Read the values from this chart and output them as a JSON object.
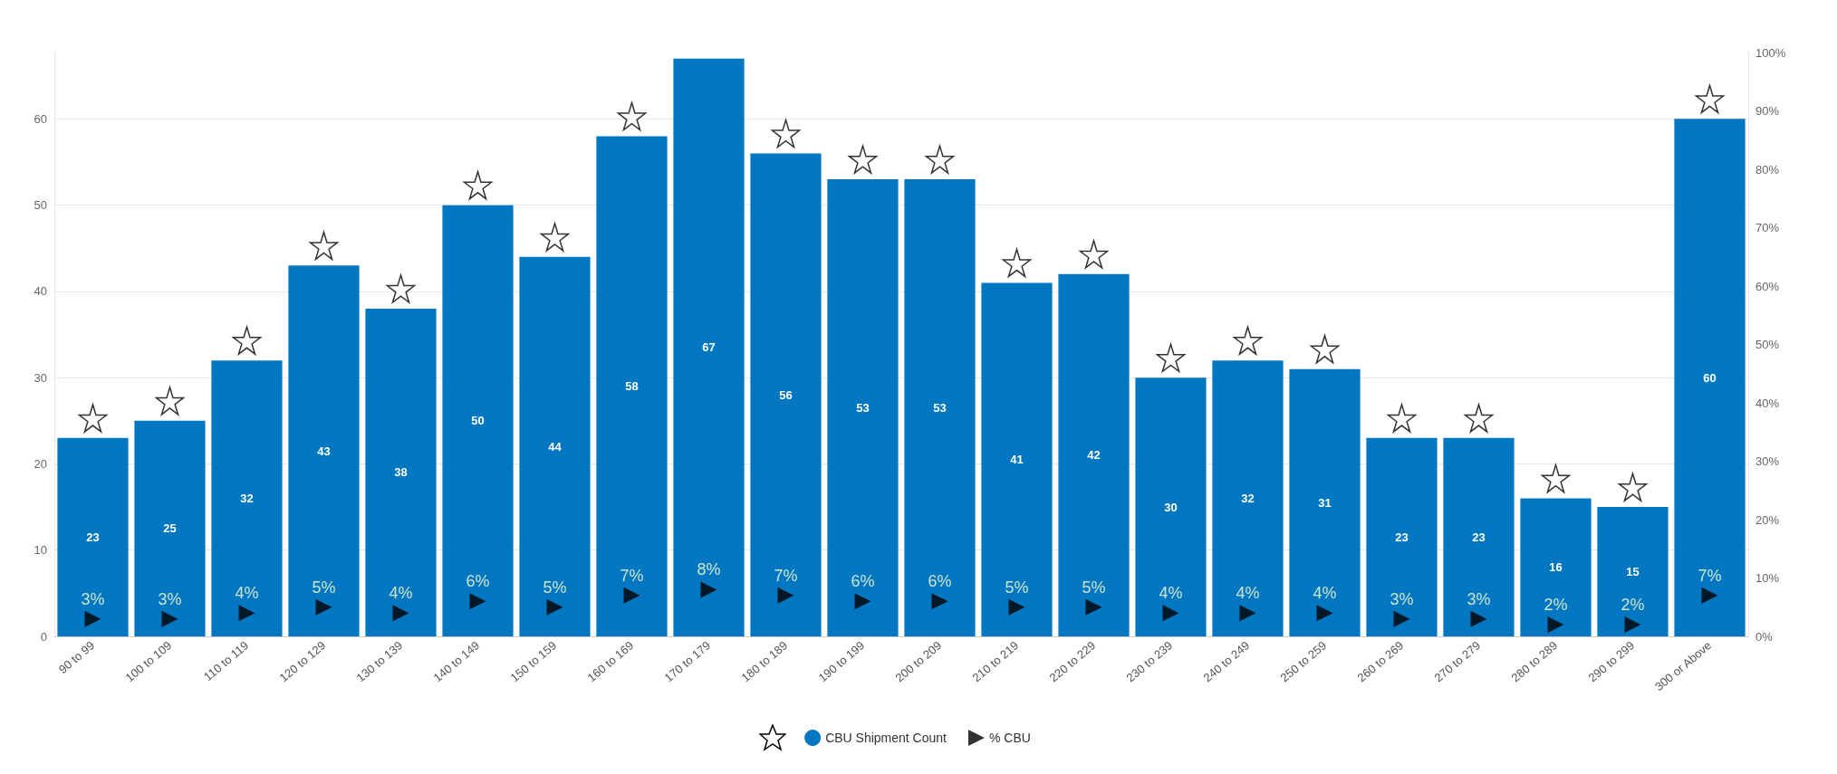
{
  "chart_data": {
    "type": "bar",
    "categories": [
      "90 to 99",
      "100 to 109",
      "110 to 119",
      "120 to 129",
      "130 to 139",
      "140 to 149",
      "150 to 159",
      "160 to 169",
      "170 to 179",
      "180 to 189",
      "190 to 199",
      "200 to 209",
      "210 to 219",
      "220 to 229",
      "230 to 239",
      "240 to 249",
      "250 to 259",
      "260 to 269",
      "270 to 279",
      "280 to 289",
      "290 to 299",
      "300 or Above"
    ],
    "series": [
      {
        "name": "CBU Shipment Count",
        "color": "#0077c0",
        "values": [
          23,
          25,
          32,
          43,
          38,
          50,
          44,
          58,
          67,
          56,
          53,
          53,
          41,
          42,
          30,
          32,
          31,
          23,
          23,
          16,
          15,
          60
        ],
        "value_labels": [
          "23",
          "25",
          "32",
          "43",
          "38",
          "50",
          "44",
          "58",
          "67",
          "56",
          "53",
          "53",
          "41",
          "42",
          "30",
          "32",
          "31",
          "23",
          "23",
          "16",
          "15",
          "60"
        ]
      },
      {
        "type": "scatter",
        "marker": "star",
        "color": "#000000",
        "values": [
          25.3,
          27.3,
          34.3,
          45.3,
          40.3,
          52.3,
          46.3,
          60.3,
          null,
          58.3,
          55.3,
          55.3,
          43.3,
          44.3,
          32.3,
          34.3,
          33.3,
          25.3,
          25.3,
          18.3,
          17.3,
          62.3
        ]
      },
      {
        "name": "% CBU",
        "type": "scatter",
        "marker": "triangle",
        "axis": "y2",
        "color": "#000000",
        "values": [
          3,
          3,
          4,
          5,
          4,
          6,
          5,
          7,
          8,
          7,
          6,
          6,
          5,
          5,
          4,
          4,
          4,
          3,
          3,
          2,
          2,
          7
        ],
        "value_labels": [
          "3%",
          "3%",
          "4%",
          "5%",
          "4%",
          "6%",
          "5%",
          "7%",
          "8%",
          "7%",
          "6%",
          "6%",
          "5%",
          "5%",
          "4%",
          "4%",
          "4%",
          "3%",
          "3%",
          "2%",
          "2%",
          "7%"
        ]
      }
    ],
    "ylim": [
      0,
      67.7
    ],
    "yticks": [
      0,
      10,
      20,
      30,
      40,
      50,
      60
    ],
    "y2lim": [
      0,
      100
    ],
    "y2ticks": [
      {
        "value": 0,
        "label": "0%"
      },
      {
        "value": 10,
        "label": "10%"
      },
      {
        "value": 20,
        "label": "20%"
      },
      {
        "value": 30,
        "label": "30%"
      },
      {
        "value": 40,
        "label": "40%"
      },
      {
        "value": 50,
        "label": "50%"
      },
      {
        "value": 60,
        "label": "60%"
      },
      {
        "value": 70,
        "label": "70%"
      },
      {
        "value": 80,
        "label": "80%"
      },
      {
        "value": 90,
        "label": "90%"
      },
      {
        "value": 100,
        "label": "100%"
      }
    ],
    "grid": "y",
    "legend": "bottom"
  }
}
